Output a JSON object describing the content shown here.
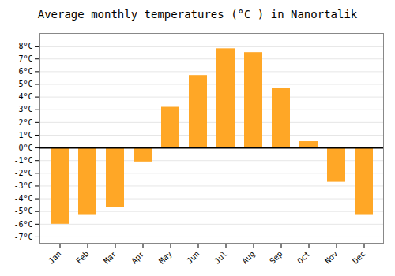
{
  "chart_data": {
    "type": "bar",
    "title": "Average monthly temperatures (°C ) in Nanortalik",
    "categories": [
      "Jan",
      "Feb",
      "Mar",
      "Apr",
      "May",
      "Jun",
      "Jul",
      "Aug",
      "Sep",
      "Oct",
      "Nov",
      "Dec"
    ],
    "values": [
      -6.0,
      -5.3,
      -4.7,
      -1.1,
      3.2,
      5.7,
      7.8,
      7.5,
      4.7,
      0.5,
      -2.7,
      -5.3
    ],
    "color": "#FFA726",
    "ylim": [
      -7.5,
      9.0
    ],
    "yticks": [
      {
        "value": -7,
        "label": "-7°C"
      },
      {
        "value": -6,
        "label": "-6°C"
      },
      {
        "value": -5,
        "label": "-5°C"
      },
      {
        "value": -4,
        "label": "-4°C"
      },
      {
        "value": -3,
        "label": "-3°C"
      },
      {
        "value": -2,
        "label": "-2°C"
      },
      {
        "value": -1,
        "label": "-1°C"
      },
      {
        "value": 0,
        "label": "0°C"
      },
      {
        "value": 1,
        "label": "1°C"
      },
      {
        "value": 2,
        "label": "2°C"
      },
      {
        "value": 3,
        "label": "3°C"
      },
      {
        "value": 4,
        "label": "4°C"
      },
      {
        "value": 5,
        "label": "5°C"
      },
      {
        "value": 6,
        "label": "6°C"
      },
      {
        "value": 7,
        "label": "7°C"
      },
      {
        "value": 8,
        "label": "8°C"
      }
    ],
    "grid": true
  }
}
